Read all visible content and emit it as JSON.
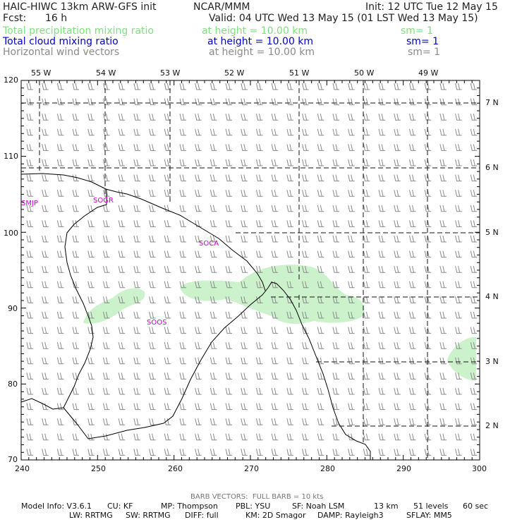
{
  "header": {
    "model": "HAIC-HIWC 13km ARW-GFS init",
    "center": "NCAR/MMM",
    "init": "Init: 12 UTC Tue 12 May 15",
    "fcst_label": "Fcst:",
    "fcst_value": "16 h",
    "valid": "Valid: 04 UTC Wed 13 May 15 (01 LST Wed 13 May 15)"
  },
  "fields": [
    {
      "name": "Total precipitation mixing ratio",
      "height": "at height = 10.00 km",
      "sm": "sm= 1",
      "color": "#7ee07e"
    },
    {
      "name": "Total cloud mixing ratio",
      "height": "at height = 10.00 km",
      "sm": "sm= 1",
      "color": "#0000cc"
    },
    {
      "name": "Horizontal wind vectors",
      "height": "at height = 10.00 km",
      "sm": "sm= 1",
      "color": "#8a8a8a"
    }
  ],
  "map": {
    "lon_labels": [
      "55 W",
      "54 W",
      "53 W",
      "52 W",
      "51 W",
      "50 W",
      "49 W"
    ],
    "lat_labels": [
      "7 N",
      "6 N",
      "5 N",
      "4 N",
      "3 N",
      "2 N"
    ],
    "grid_x_labels": [
      "240",
      "250",
      "260",
      "270",
      "280",
      "290",
      "300"
    ],
    "grid_y_labels": [
      "120",
      "110",
      "100",
      "90",
      "80",
      "70"
    ],
    "stations": [
      "SMJP",
      "SOGR",
      "SOCA",
      "SOOS"
    ],
    "station_color": "#cc00cc",
    "precip_color": "#ccf2cc",
    "barb_color": "#8a8a8a"
  },
  "footer": {
    "barb_note": "BARB VECTORS:  FULL BARB = 10 kts",
    "model_info_label": "Model Info: V3.6.1",
    "cu": "CU: KF",
    "mp": "MP: Thompson",
    "pbl": "PBL: YSU",
    "sf": "SF: Noah LSM",
    "res": "13 km",
    "levels": "51 levels",
    "dt": "60 sec",
    "lw": "LW: RRTMG",
    "sw": "SW: RRTMG",
    "diff": "DIFF: full",
    "km": "KM: 2D Smagor",
    "damp": "DAMP: Rayleigh3",
    "sflay": "SFLAY: MM5"
  }
}
